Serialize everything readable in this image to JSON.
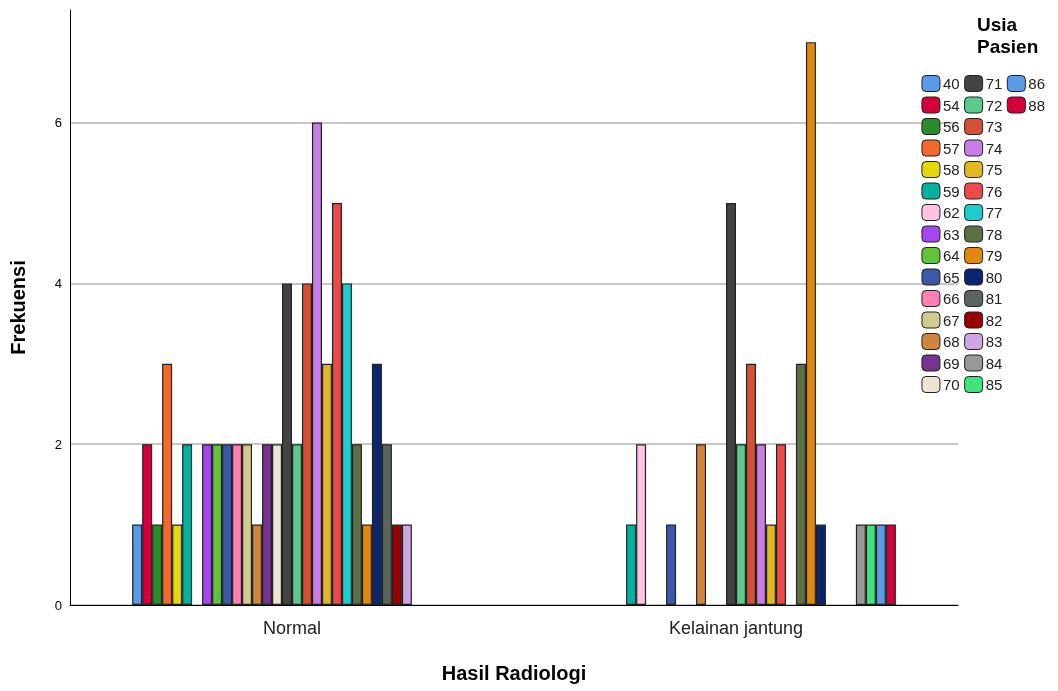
{
  "chart_data": {
    "type": "bar",
    "xlabel": "Hasil Radiologi",
    "ylabel": "Frekuensi",
    "legend_title": "Usia Pasien",
    "categories": [
      "Normal",
      "Kelainan jantung"
    ],
    "ylim": [
      0,
      7.4
    ],
    "yticks": [
      0,
      2,
      4,
      6
    ],
    "grid": "y",
    "legend": "right",
    "series": [
      {
        "name": "40",
        "color": "#5b9ae6",
        "values": [
          1,
          null
        ]
      },
      {
        "name": "54",
        "color": "#d5003a",
        "values": [
          2,
          null
        ]
      },
      {
        "name": "56",
        "color": "#2b8a2b",
        "values": [
          1,
          null
        ]
      },
      {
        "name": "57",
        "color": "#f2692b",
        "values": [
          3,
          null
        ]
      },
      {
        "name": "58",
        "color": "#e3d80b",
        "values": [
          1,
          null
        ]
      },
      {
        "name": "59",
        "color": "#00b3a0",
        "values": [
          2,
          1
        ]
      },
      {
        "name": "62",
        "color": "#ffc2e3",
        "values": [
          null,
          2
        ]
      },
      {
        "name": "63",
        "color": "#a546ef",
        "values": [
          2,
          null
        ]
      },
      {
        "name": "64",
        "color": "#62c33a",
        "values": [
          2,
          null
        ]
      },
      {
        "name": "65",
        "color": "#3e58a8",
        "values": [
          2,
          1
        ]
      },
      {
        "name": "66",
        "color": "#ff80b4",
        "values": [
          2,
          null
        ]
      },
      {
        "name": "67",
        "color": "#d1cb92",
        "values": [
          2,
          null
        ]
      },
      {
        "name": "68",
        "color": "#cd853f",
        "values": [
          1,
          2
        ]
      },
      {
        "name": "69",
        "color": "#76338f",
        "values": [
          2,
          null
        ]
      },
      {
        "name": "70",
        "color": "#ede5d2",
        "values": [
          2,
          null
        ]
      },
      {
        "name": "71",
        "color": "#434343",
        "values": [
          4,
          5
        ]
      },
      {
        "name": "72",
        "color": "#5bcb8b",
        "values": [
          2,
          2
        ]
      },
      {
        "name": "73",
        "color": "#d45233",
        "values": [
          4,
          3
        ]
      },
      {
        "name": "74",
        "color": "#c77fe3",
        "values": [
          6,
          2
        ]
      },
      {
        "name": "75",
        "color": "#e3b71e",
        "values": [
          3,
          1
        ]
      },
      {
        "name": "76",
        "color": "#ed4a4a",
        "values": [
          5,
          2
        ]
      },
      {
        "name": "77",
        "color": "#1ccdcd",
        "values": [
          4,
          null
        ]
      },
      {
        "name": "78",
        "color": "#5c7046",
        "values": [
          2,
          3
        ]
      },
      {
        "name": "79",
        "color": "#e0890b",
        "values": [
          1,
          7
        ]
      },
      {
        "name": "80",
        "color": "#0b2570",
        "values": [
          3,
          1
        ]
      },
      {
        "name": "81",
        "color": "#5b6560",
        "values": [
          2,
          null
        ]
      },
      {
        "name": "82",
        "color": "#9b0000",
        "values": [
          1,
          null
        ]
      },
      {
        "name": "83",
        "color": "#cda6e3",
        "values": [
          1,
          null
        ]
      },
      {
        "name": "84",
        "color": "#989898",
        "values": [
          null,
          1
        ]
      },
      {
        "name": "85",
        "color": "#3de57c",
        "values": [
          null,
          1
        ]
      },
      {
        "name": "86",
        "color": "#5b9ae6",
        "values": [
          null,
          1
        ]
      },
      {
        "name": "88",
        "color": "#d5003a",
        "values": [
          null,
          1
        ]
      }
    ]
  }
}
